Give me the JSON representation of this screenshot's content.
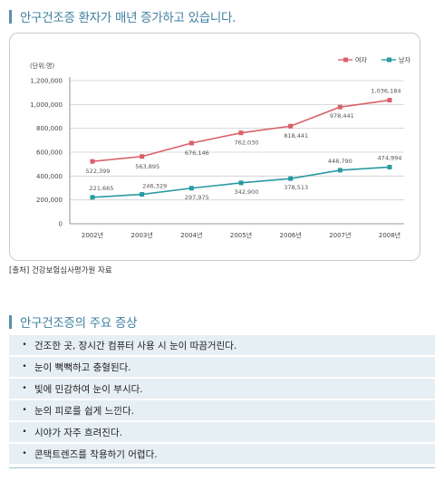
{
  "header": {
    "title": "안구건조증 환자가 매년 증가하고 있습니다."
  },
  "chart_data": {
    "type": "line",
    "unit_label": "(단위:명)",
    "categories": [
      "2002년",
      "2003년",
      "2004년",
      "2005년",
      "2006년",
      "2007년",
      "2008년"
    ],
    "ylim": [
      0,
      1200000
    ],
    "yticks": [
      "0",
      "200,000",
      "400,000",
      "600,000",
      "800,000",
      "1,000,000",
      "1,200,000"
    ],
    "grid": true,
    "legend_position": "top-right",
    "series": [
      {
        "name": "여자",
        "color": "#d9606a",
        "values": [
          522399,
          563895,
          676146,
          762030,
          818441,
          978441,
          1036184
        ],
        "labels": [
          "522,399",
          "563,895",
          "676,146",
          "762,030",
          "818,441",
          "978,441",
          "1,036,184"
        ]
      },
      {
        "name": "남자",
        "color": "#2a9aa3",
        "values": [
          221665,
          246329,
          297975,
          342900,
          378513,
          448790,
          474994
        ],
        "labels": [
          "221,665",
          "246,329",
          "297,975",
          "342,900",
          "378,513",
          "448,790",
          "474,994"
        ]
      }
    ]
  },
  "source": "[출처] 건강보험심사평가원 자료",
  "symptoms": {
    "title": "안구건조증의 주요 증상",
    "bullet": "•",
    "items": [
      "건조한 곳, 장시간 컴퓨터 사용 시 눈이 따끔거린다.",
      "눈이 뻑뻑하고 충혈된다.",
      "빛에 민감하여 눈이 부시다.",
      "눈의 피로를 쉽게 느낀다.",
      "시야가 자주 흐려진다.",
      "콘택트렌즈를 착용하기 어렵다."
    ]
  }
}
